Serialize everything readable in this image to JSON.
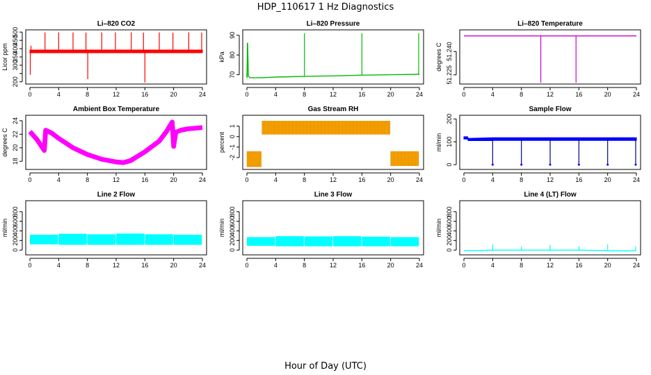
{
  "title": "HDP_110617  1 Hz Diagnostics",
  "xlabel": "Hour of Day (UTC)",
  "chart_data": [
    {
      "type": "line",
      "title": "Li–820 CO2",
      "ylabel": "Licor ppm",
      "color": "#ff0000",
      "xlim": [
        0,
        24
      ],
      "ylim": [
        195,
        505
      ],
      "xticks": [
        0,
        4,
        8,
        12,
        16,
        20,
        24
      ],
      "yticks": [
        200,
        250,
        300,
        350,
        400,
        450,
        500
      ],
      "ytick_labels": [
        "200",
        "",
        "300",
        "350",
        "400",
        "450",
        "500"
      ],
      "band": {
        "x": [
          0,
          24
        ],
        "low": [
          375,
          375
        ],
        "high": [
          392,
          392
        ]
      },
      "spikes": [
        {
          "x": 0.05,
          "y0": 384,
          "y1": 242
        },
        {
          "x": 0.15,
          "y0": 384,
          "y1": 418
        },
        {
          "x": 2.1,
          "y0": 384,
          "y1": 498
        },
        {
          "x": 4.0,
          "y0": 384,
          "y1": 498
        },
        {
          "x": 6.0,
          "y0": 384,
          "y1": 498
        },
        {
          "x": 7.8,
          "y0": 384,
          "y1": 497
        },
        {
          "x": 8.05,
          "y0": 384,
          "y1": 216
        },
        {
          "x": 10.0,
          "y0": 384,
          "y1": 498
        },
        {
          "x": 11.9,
          "y0": 384,
          "y1": 498
        },
        {
          "x": 14.1,
          "y0": 384,
          "y1": 498
        },
        {
          "x": 16.0,
          "y0": 384,
          "y1": 196
        },
        {
          "x": 15.8,
          "y0": 384,
          "y1": 497
        },
        {
          "x": 18.0,
          "y0": 384,
          "y1": 498
        },
        {
          "x": 19.9,
          "y0": 384,
          "y1": 497
        },
        {
          "x": 22.1,
          "y0": 384,
          "y1": 498
        },
        {
          "x": 23.9,
          "y0": 384,
          "y1": 497
        }
      ]
    },
    {
      "type": "line",
      "title": "Li–820 Pressure",
      "ylabel": "kPa",
      "color": "#00bb00",
      "xlim": [
        0,
        24
      ],
      "ylim": [
        66,
        92
      ],
      "xticks": [
        0,
        4,
        8,
        12,
        16,
        20,
        24
      ],
      "yticks": [
        70,
        80,
        90
      ],
      "ytick_labels": [
        "70",
        "80",
        "90"
      ],
      "series": [
        {
          "x": [
            0,
            0.1,
            0.2,
            0.4,
            2,
            4,
            6,
            8,
            10,
            12,
            14,
            16,
            18,
            20,
            22,
            24
          ],
          "y": [
            68.5,
            86,
            69.5,
            68.5,
            68.5,
            68.8,
            69,
            69.2,
            69.3,
            69.4,
            69.6,
            69.8,
            69.9,
            70.0,
            70.1,
            70.2
          ]
        }
      ],
      "spikes": [
        {
          "x": 0.05,
          "y0": 68.5,
          "y1": 86
        },
        {
          "x": 8.0,
          "y0": 69.2,
          "y1": 91
        },
        {
          "x": 16.0,
          "y0": 69.8,
          "y1": 91
        },
        {
          "x": 23.9,
          "y0": 70.2,
          "y1": 91
        }
      ]
    },
    {
      "type": "line",
      "title": "Li–820 Temperature",
      "ylabel": "degrees C",
      "color": "#cc00cc",
      "xlim": [
        0,
        24
      ],
      "ylim": [
        51.22,
        51.253
      ],
      "xticks": [
        0,
        4,
        8,
        12,
        16,
        20,
        24
      ],
      "yticks": [
        51.225,
        51.24
      ],
      "ytick_labels": [
        "51.225",
        "51.240"
      ],
      "series": [
        {
          "x": [
            0,
            24
          ],
          "y": [
            51.25,
            51.25
          ]
        }
      ],
      "spikes": [
        {
          "x": 10.7,
          "y0": 51.25,
          "y1": 51.22
        },
        {
          "x": 15.6,
          "y0": 51.25,
          "y1": 51.22
        }
      ]
    },
    {
      "type": "line",
      "title": "Ambient Box Temperature",
      "ylabel": "degrees C",
      "color": "#ff00ff",
      "xlim": [
        0,
        24
      ],
      "ylim": [
        17,
        24.6
      ],
      "xticks": [
        0,
        4,
        8,
        12,
        16,
        20,
        24
      ],
      "yticks": [
        18,
        20,
        22,
        24
      ],
      "ytick_labels": [
        "18",
        "20",
        "22",
        "24"
      ],
      "band_width": 0.7,
      "series": [
        {
          "x": [
            0,
            1,
            2,
            2.2,
            3,
            4,
            6,
            8,
            10,
            12,
            13,
            14,
            16,
            18,
            19,
            19.8,
            20.0,
            20.3,
            21,
            22,
            23,
            24
          ],
          "y": [
            22.4,
            21.2,
            19.6,
            22.6,
            22.2,
            21.4,
            20.0,
            19.0,
            18.3,
            17.9,
            17.8,
            18.1,
            19.4,
            21.0,
            22.4,
            23.8,
            20.2,
            22.3,
            22.6,
            22.8,
            22.9,
            23.0
          ]
        }
      ]
    },
    {
      "type": "line",
      "title": "Gas Stream RH",
      "ylabel": "percent",
      "color": "#ffaa00",
      "color2": "#aa5500",
      "xlim": [
        0,
        24
      ],
      "ylim": [
        -3.0,
        1.9
      ],
      "xticks": [
        0,
        4,
        8,
        12,
        16,
        20,
        24
      ],
      "yticks": [
        -2,
        -1,
        0,
        1
      ],
      "ytick_labels": [
        "-2",
        "-1",
        "0",
        "1"
      ],
      "bands": [
        {
          "x0": 0,
          "x1": 2.1,
          "low": -2.9,
          "high": -1.4
        },
        {
          "x0": 2.1,
          "x1": 20.0,
          "low": 0.2,
          "high": 1.5
        },
        {
          "x0": 20.0,
          "x1": 24,
          "low": -2.8,
          "high": -1.4
        }
      ]
    },
    {
      "type": "line",
      "title": "Sample Flow",
      "ylabel": "ml/min",
      "color": "#0000ff",
      "color2": "#000088",
      "xlim": [
        0,
        24
      ],
      "ylim": [
        -15,
        210
      ],
      "xticks": [
        0,
        4,
        8,
        12,
        16,
        20,
        24
      ],
      "yticks": [
        0,
        100,
        200
      ],
      "ytick_labels": [
        "0",
        "100",
        "200"
      ],
      "band": {
        "x": [
          0,
          0.5,
          0.6,
          4.0,
          4.1,
          24
        ],
        "low": [
          112,
          112,
          105,
          105,
          106,
          106
        ],
        "high": [
          122,
          122,
          115,
          118,
          118,
          118
        ]
      },
      "spikes": [
        {
          "x": 4.0,
          "y0": 110,
          "y1": 0
        },
        {
          "x": 8.0,
          "y0": 110,
          "y1": 0
        },
        {
          "x": 12.0,
          "y0": 110,
          "y1": 0
        },
        {
          "x": 16.0,
          "y0": 110,
          "y1": 0
        },
        {
          "x": 20.0,
          "y0": 110,
          "y1": 0
        },
        {
          "x": 23.9,
          "y0": 110,
          "y1": 0
        }
      ]
    },
    {
      "type": "line",
      "title": "Line 2 Flow",
      "ylabel": "ml/min",
      "color": "#00ffff",
      "xlim": [
        0,
        24
      ],
      "ylim": [
        -70,
        1000
      ],
      "xticks": [
        0,
        4,
        8,
        12,
        16,
        20,
        24
      ],
      "yticks": [
        0,
        200,
        400,
        600,
        800
      ],
      "ytick_labels": [
        "0",
        "200",
        "400",
        "600",
        "800"
      ],
      "bands": [
        {
          "x0": 0,
          "x1": 4,
          "low": 120,
          "high": 320
        },
        {
          "x0": 4,
          "x1": 8,
          "low": 110,
          "high": 340
        },
        {
          "x0": 8,
          "x1": 12,
          "low": 110,
          "high": 330
        },
        {
          "x0": 12,
          "x1": 16,
          "low": 110,
          "high": 345
        },
        {
          "x0": 16,
          "x1": 20,
          "low": 110,
          "high": 330
        },
        {
          "x0": 20,
          "x1": 24,
          "low": 110,
          "high": 320
        }
      ]
    },
    {
      "type": "line",
      "title": "Line 3 Flow",
      "ylabel": "ml/min",
      "color": "#00ffff",
      "xlim": [
        0,
        24
      ],
      "ylim": [
        -70,
        1000
      ],
      "xticks": [
        0,
        4,
        8,
        12,
        16,
        20,
        24
      ],
      "yticks": [
        0,
        200,
        400,
        600,
        800
      ],
      "ytick_labels": [
        "0",
        "200",
        "400",
        "600",
        "800"
      ],
      "bands": [
        {
          "x0": 0,
          "x1": 4,
          "low": 90,
          "high": 270
        },
        {
          "x0": 4,
          "x1": 8,
          "low": 80,
          "high": 290
        },
        {
          "x0": 8,
          "x1": 12,
          "low": 80,
          "high": 285
        },
        {
          "x0": 12,
          "x1": 16,
          "low": 80,
          "high": 290
        },
        {
          "x0": 16,
          "x1": 20,
          "low": 80,
          "high": 280
        },
        {
          "x0": 20,
          "x1": 24,
          "low": 80,
          "high": 270
        }
      ]
    },
    {
      "type": "line",
      "title": "Line 4 (LT) Flow",
      "ylabel": "ml/min",
      "color": "#00ffff",
      "xlim": [
        0,
        24
      ],
      "ylim": [
        -70,
        1000
      ],
      "xticks": [
        0,
        4,
        8,
        12,
        16,
        20,
        24
      ],
      "yticks": [
        0,
        200,
        400,
        600,
        800
      ],
      "ytick_labels": [
        "0",
        "200",
        "400",
        "600",
        "800"
      ],
      "series": [
        {
          "x": [
            0,
            2,
            4,
            8,
            12,
            16,
            20,
            22,
            24
          ],
          "y": [
            -10,
            -10,
            0,
            0,
            0,
            0,
            -10,
            -15,
            -10
          ]
        }
      ],
      "spikes": [
        {
          "x": 4.0,
          "y0": 0,
          "y1": 120
        },
        {
          "x": 8.0,
          "y0": 0,
          "y1": 80
        },
        {
          "x": 12.0,
          "y0": 0,
          "y1": 110
        },
        {
          "x": 16.0,
          "y0": 0,
          "y1": 80
        },
        {
          "x": 20.0,
          "y0": 0,
          "y1": 120
        },
        {
          "x": 23.9,
          "y0": 0,
          "y1": 80
        }
      ]
    }
  ]
}
